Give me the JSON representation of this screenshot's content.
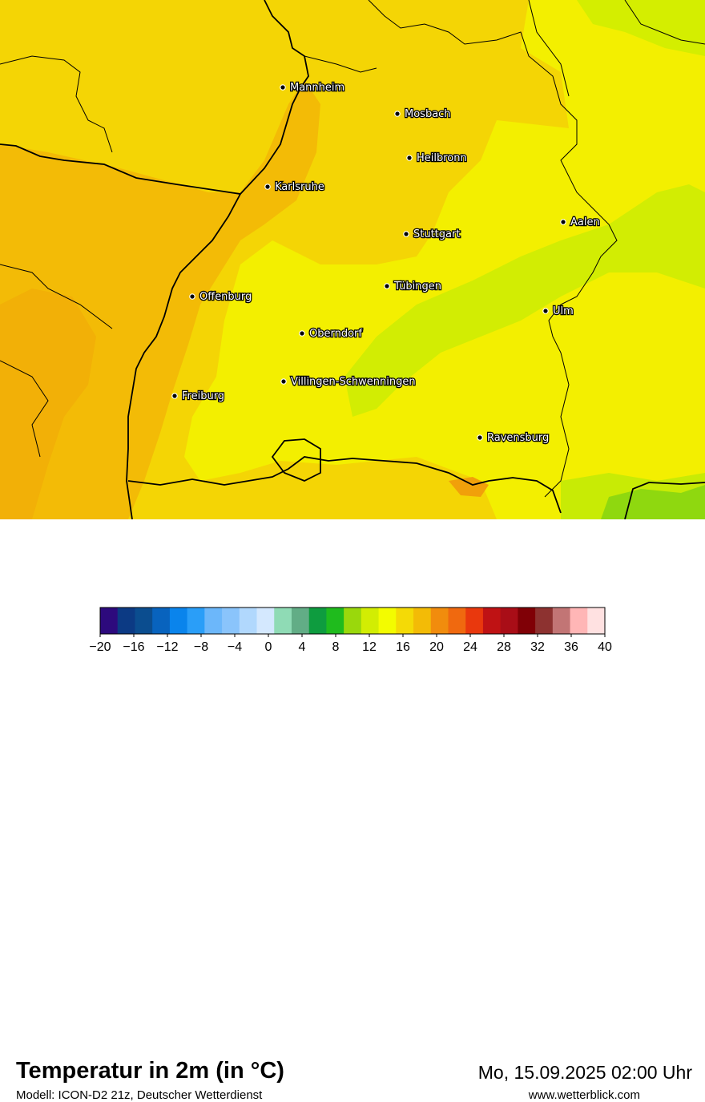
{
  "map": {
    "title": "Temperatur in 2m (in °C)",
    "subtitle": "Modell: ICON-D2 21z, Deutscher Wetterdienst",
    "datetime": "Mo, 15.09.2025 02:00 Uhr",
    "website": "www.wetterblick.com",
    "cities": [
      {
        "name": "Mannheim"
      },
      {
        "name": "Mosbach"
      },
      {
        "name": "Heilbronn"
      },
      {
        "name": "Karlsruhe"
      },
      {
        "name": "Aalen"
      },
      {
        "name": "Stuttgart"
      },
      {
        "name": "Tübingen"
      },
      {
        "name": "Offenburg"
      },
      {
        "name": "Ulm"
      },
      {
        "name": "Oberndorf"
      },
      {
        "name": "Villingen-Schwenningen"
      },
      {
        "name": "Freiburg"
      },
      {
        "name": "Ravensburg"
      }
    ]
  },
  "legend": {
    "ticks": [
      "−20",
      "−16",
      "−12",
      "−8",
      "−4",
      "0",
      "4",
      "8",
      "12",
      "16",
      "20",
      "24",
      "28",
      "32",
      "36",
      "40"
    ],
    "colors": [
      "#2d0a7d",
      "#0c3a84",
      "#0b4d8f",
      "#0863be",
      "#0a84ec",
      "#2a9ef8",
      "#6cb7fa",
      "#8ac4fb",
      "#b1d8fd",
      "#d4e8fe",
      "#8fdbb5",
      "#62ad86",
      "#0e9c3f",
      "#1fbb1d",
      "#9ad80c",
      "#d2ed03",
      "#f3fc00",
      "#f4da06",
      "#f3bb06",
      "#f18c0d",
      "#f0690f",
      "#e9380d",
      "#bf1214",
      "#a90d17",
      "#800006",
      "#8d3230",
      "#c27575",
      "#ffb6b6",
      "#ffe1e1"
    ]
  }
}
